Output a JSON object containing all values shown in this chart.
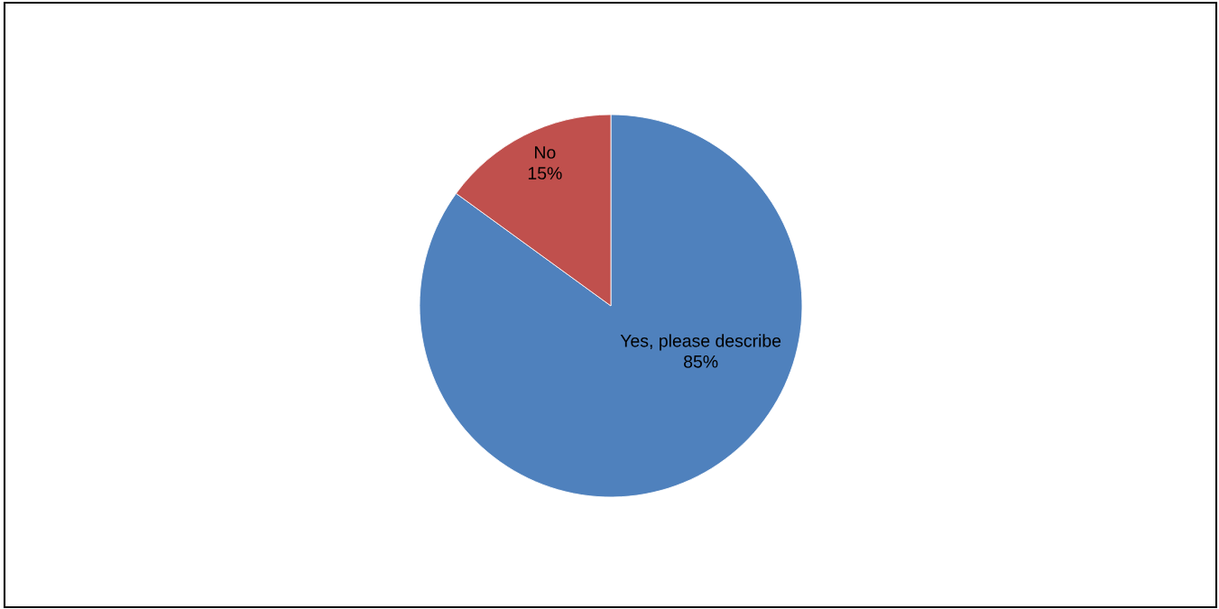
{
  "chart_data": {
    "type": "pie",
    "categories": [
      "Yes, please describe",
      "No"
    ],
    "values": [
      85,
      15
    ],
    "colors": [
      "#4f81bd",
      "#c0504d"
    ],
    "value_labels": [
      "85%",
      "15%"
    ],
    "legend": false
  }
}
